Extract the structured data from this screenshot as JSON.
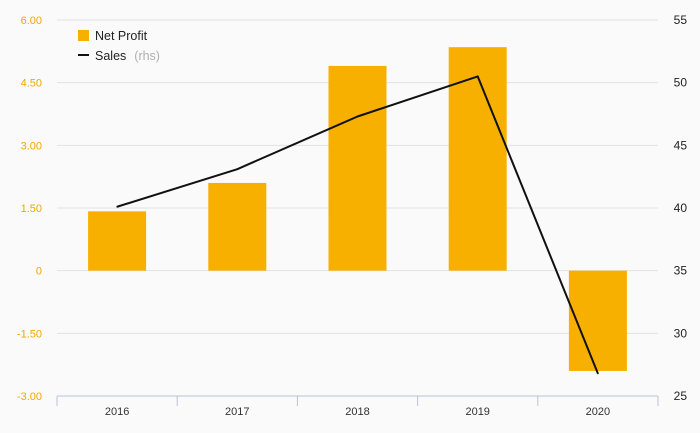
{
  "chart_data": {
    "type": "bar",
    "categories": [
      "2016",
      "2017",
      "2018",
      "2019",
      "2020"
    ],
    "series": [
      {
        "name": "Net Profit",
        "type": "bar",
        "axis": "left",
        "color": "#f7b000",
        "values": [
          1.42,
          2.1,
          4.9,
          5.35,
          -2.4
        ]
      },
      {
        "name": "Sales",
        "name_note": "(rhs)",
        "type": "line",
        "axis": "right",
        "color": "#111111",
        "values": [
          40.1,
          43.1,
          47.3,
          50.5,
          26.8
        ]
      }
    ],
    "y_left": {
      "ylim": [
        -3.0,
        6.0
      ],
      "ticks": [
        -3.0,
        -1.5,
        0,
        1.5,
        3.0,
        4.5,
        6.0
      ],
      "tick_labels": [
        "-3.00",
        "-1.50",
        "0",
        "1.50",
        "3.00",
        "4.50",
        "6.00"
      ],
      "color": "#f0a800"
    },
    "y_right": {
      "ylim": [
        25,
        55
      ],
      "ticks": [
        25,
        30,
        35,
        40,
        45,
        50,
        55
      ],
      "tick_labels": [
        "25",
        "30",
        "35",
        "40",
        "45",
        "50",
        "55"
      ]
    },
    "grid": true,
    "legend": {
      "placement": "top-left",
      "items": [
        {
          "label": "Net Profit",
          "note": ""
        },
        {
          "label": "Sales",
          "note": "(rhs)"
        }
      ]
    }
  }
}
